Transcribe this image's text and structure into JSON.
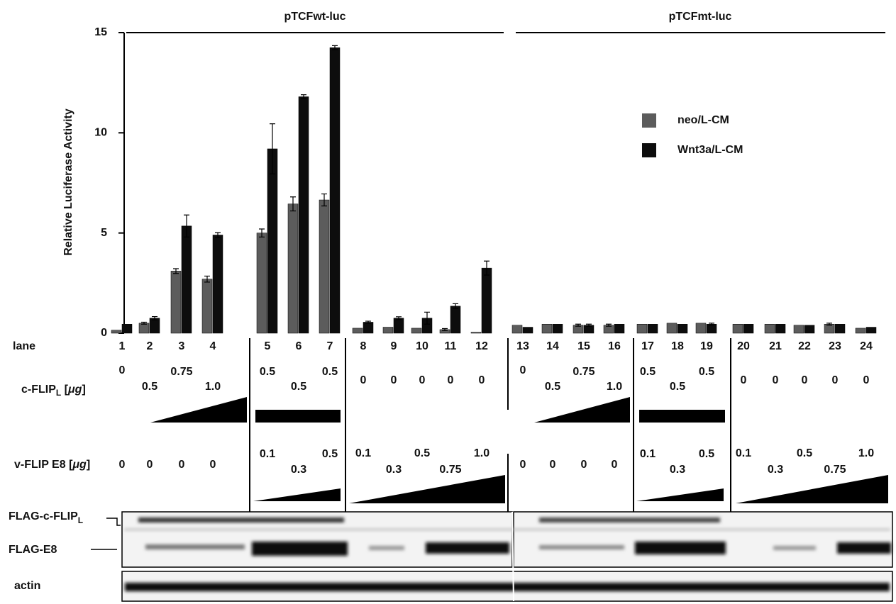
{
  "chart_data": {
    "type": "bar",
    "y_label": "Relative Luciferase Activity",
    "group_labels": [
      "pTCFwt-luc",
      "pTCFmt-luc"
    ],
    "categories": [
      "1",
      "2",
      "3",
      "4",
      "5",
      "6",
      "7",
      "8",
      "9",
      "10",
      "11",
      "12",
      "13",
      "14",
      "15",
      "16",
      "17",
      "18",
      "19",
      "20",
      "21",
      "22",
      "23",
      "24"
    ],
    "series": [
      {
        "name": "neo/L-CM",
        "color": "#5c5c5c",
        "values": [
          0.15,
          0.5,
          3.1,
          2.7,
          5.0,
          6.45,
          6.65,
          0.25,
          0.3,
          0.25,
          0.18,
          0.05,
          0.4,
          0.45,
          0.4,
          0.4,
          0.45,
          0.5,
          0.5,
          0.45,
          0.45,
          0.4,
          0.45,
          0.25
        ],
        "errors": [
          null,
          0.05,
          0.12,
          0.15,
          0.2,
          0.35,
          0.3,
          null,
          null,
          null,
          0.05,
          null,
          null,
          null,
          0.05,
          0.05,
          null,
          null,
          null,
          null,
          null,
          null,
          0.05,
          null
        ]
      },
      {
        "name": "Wnt3a/L-CM",
        "color": "#0d0d0d",
        "values": [
          0.45,
          0.75,
          5.35,
          4.9,
          9.2,
          11.8,
          14.25,
          0.55,
          0.75,
          0.75,
          1.35,
          3.25,
          0.3,
          0.45,
          0.4,
          0.45,
          0.45,
          0.45,
          0.45,
          0.45,
          0.45,
          0.4,
          0.45,
          0.3
        ],
        "errors": [
          null,
          0.08,
          0.55,
          0.12,
          1.25,
          0.1,
          0.1,
          0.05,
          0.07,
          0.3,
          0.12,
          0.35,
          null,
          null,
          0.05,
          null,
          null,
          null,
          0.05,
          null,
          null,
          null,
          null,
          null
        ]
      }
    ],
    "ylim": [
      0,
      15
    ],
    "yticks": [
      0,
      5,
      10,
      15
    ]
  },
  "rows": {
    "lane_label": "lane",
    "c_flip": {
      "name": "c-FLIP",
      "sub": "L",
      "unit_open": " [",
      "unit": "μg",
      "unit_close": "]",
      "amounts": [
        "0",
        "0.5",
        "0.75",
        "1.0",
        "0.5",
        "0.5",
        "0.5",
        "0",
        "0",
        "0",
        "0",
        "0",
        "0",
        "0.5",
        "0.75",
        "1.0",
        "0.5",
        "0.5",
        "0.5",
        "0",
        "0",
        "0",
        "0",
        "0"
      ]
    },
    "v_flip": {
      "name": "v-FLIP E8 [",
      "unit": "μg",
      "unit_close": "]",
      "amounts": [
        "0",
        "0",
        "0",
        "0",
        "0.1",
        "0.3",
        "0.5",
        "0.1",
        "0.3",
        "0.5",
        "0.75",
        "1.0",
        "0",
        "0",
        "0",
        "0",
        "0.1",
        "0.3",
        "0.5",
        "0.1",
        "0.3",
        "0.5",
        "0.75",
        "1.0"
      ]
    }
  },
  "blots": {
    "flag_c_flip": "FLAG-c-FLIP",
    "flag_c_flip_sub": "L",
    "flag_e8": "FLAG-E8",
    "actin": "actin"
  }
}
